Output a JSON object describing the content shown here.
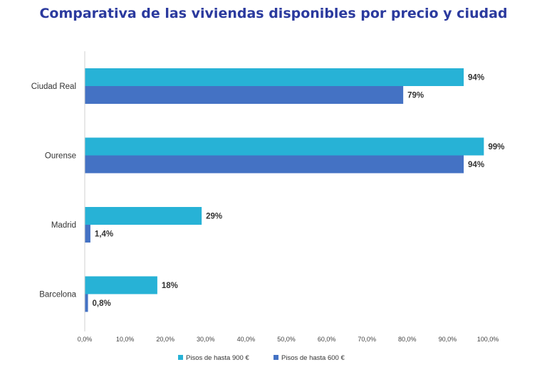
{
  "chart_data": {
    "type": "bar",
    "orientation": "horizontal",
    "title": "Comparativa de las viviendas disponibles por precio y ciudad",
    "categories": [
      "Ciudad Real",
      "Ourense",
      "Madrid",
      "Barcelona"
    ],
    "series": [
      {
        "name": "Pisos de hasta 900 €",
        "color": "#27B2D6",
        "values": [
          94,
          99,
          29,
          18
        ],
        "labels": [
          "94%",
          "99%",
          "29%",
          "18%"
        ]
      },
      {
        "name": "Pisos de hasta 600 €",
        "color": "#4472C4",
        "values": [
          79,
          94,
          1.4,
          0.8
        ],
        "labels": [
          "79%",
          "94%",
          "1,4%",
          "0,8%"
        ]
      }
    ],
    "xlim": [
      0,
      100
    ],
    "xticks": [
      "0,0%",
      "10,0%",
      "20,0%",
      "30,0%",
      "40,0%",
      "50,0%",
      "60,0%",
      "70,0%",
      "80,0%",
      "90,0%",
      "100,0%"
    ],
    "grid": false,
    "legend_position": "bottom"
  }
}
